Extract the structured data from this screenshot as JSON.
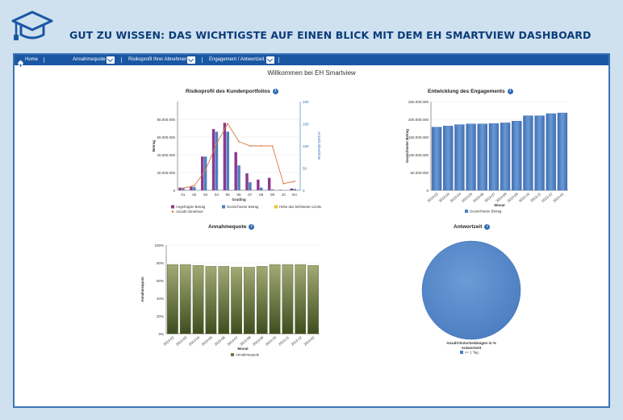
{
  "headline": "GUT ZU WISSEN: DAS WICHTIGSTE AUF EINEN BLICK MIT DEM EH SMARTVIEW DASHBOARD",
  "nav": {
    "home": "Home",
    "items": [
      "Annahmequote",
      "Risikoprofil Ihrer Abnehmer",
      "Engagement / Antwortzeit"
    ]
  },
  "welcome": "Willkommen bei EH Smartview",
  "colors": {
    "nav": "#1a57a3",
    "frame": "#3c75b6",
    "bg": "#cfe0ef",
    "headline": "#0b3d7a"
  },
  "chart_data": [
    {
      "type": "bar",
      "title": "Risikoprofil des Kundenportfolios",
      "xlabel": "Grading",
      "ylabel": "Betrag",
      "y2label": "Anzahl Abnehmer",
      "categories": [
        "01",
        "02",
        "03",
        "04",
        "05",
        "06",
        "07",
        "08",
        "09",
        "10",
        "NA"
      ],
      "ylim": [
        0,
        100000000
      ],
      "y_ticks": [
        "0",
        "20.000.000",
        "40.000.000",
        "60.000.000",
        "80.000.000"
      ],
      "y2lim": [
        0,
        200
      ],
      "y2_ticks": [
        "0",
        "50",
        "100",
        "150",
        "200"
      ],
      "series": [
        {
          "name": "Angefragter Betrag",
          "color": "#8b3a8f",
          "values": [
            3000000,
            4000000,
            38000000,
            69000000,
            76000000,
            43000000,
            19000000,
            12000000,
            14000000,
            500000,
            2000000
          ]
        },
        {
          "name": "Gezeichneter Betrag",
          "color": "#4f7fc0",
          "values": [
            2500000,
            3500000,
            38000000,
            66000000,
            66000000,
            28000000,
            9000000,
            3000000,
            1000000,
            0,
            1500000
          ]
        },
        {
          "name": "Höhe des befristeten Limits",
          "color": "#f0c030",
          "values": [
            0,
            0,
            0,
            0,
            0,
            0,
            0,
            0,
            0,
            0,
            0
          ]
        },
        {
          "name": "Anzahl Abnehmer",
          "color": "#d87a3a",
          "line": true,
          "values": [
            5,
            10,
            45,
            105,
            150,
            110,
            100,
            100,
            100,
            15,
            20
          ]
        }
      ]
    },
    {
      "type": "bar",
      "title": "Entwicklung des Engagements",
      "xlabel": "Monat",
      "ylabel": "Gezeichneter Betrag",
      "categories": [
        "2013-02",
        "2013-03",
        "2013-04",
        "2013-05",
        "2013-06",
        "2013-07",
        "2013-08",
        "2013-09",
        "2013-10",
        "2013-11",
        "2013-12",
        "2014-01"
      ],
      "ylim": [
        0,
        250000000
      ],
      "y_ticks": [
        "0",
        "50.000.000",
        "100.000.000",
        "150.000.000",
        "200.000.000",
        "250.000.000"
      ],
      "series": [
        {
          "name": "Gezeichneter Betrag",
          "color": "#4f7fc0",
          "values": [
            178000000,
            181000000,
            185000000,
            187000000,
            187000000,
            188000000,
            190000000,
            195000000,
            210000000,
            210000000,
            216000000,
            218000000
          ]
        }
      ]
    },
    {
      "type": "bar",
      "title": "Annahmequote",
      "xlabel": "Monat",
      "ylabel": "Annahmequote",
      "categories": [
        "2013-02",
        "2013-03",
        "2013-04",
        "2013-05",
        "2013-06",
        "2013-07",
        "2013-08",
        "2013-09",
        "2013-10",
        "2013-11",
        "2013-12",
        "2014-01"
      ],
      "ylim": [
        0,
        100
      ],
      "y_ticks": [
        "0%",
        "20%",
        "40%",
        "60%",
        "80%",
        "100%"
      ],
      "series": [
        {
          "name": "Annahmequote",
          "color": "#6e7a46",
          "values": [
            78,
            78,
            77,
            76,
            76,
            75,
            75,
            76,
            78,
            78,
            78,
            77
          ]
        }
      ]
    },
    {
      "type": "pie",
      "title": "Antwortzeit",
      "caption": "Anzahl Entscheidungen in %",
      "legend_title": "Antwortzeit",
      "slices": [
        {
          "name": "<= 1 Tag",
          "value": 100,
          "color": "#4f7fc0"
        }
      ]
    }
  ]
}
